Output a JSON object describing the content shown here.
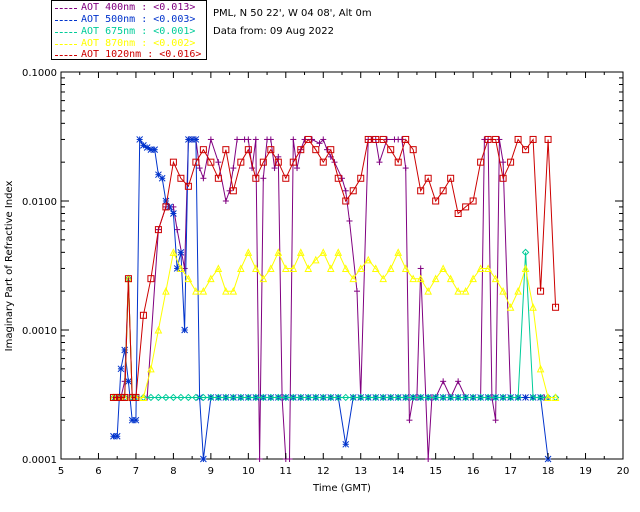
{
  "header": {
    "site": "PML, N 50 22', W 04 08', Alt 0m",
    "date": "Data from: 09 Aug 2022"
  },
  "legend": [
    {
      "label": "AOT  400nm : <0.013>",
      "color": "#800080"
    },
    {
      "label": "AOT  500nm : <0.003>",
      "color": "#0033cc"
    },
    {
      "label": "AOT  675nm : <0.001>",
      "color": "#00cc99"
    },
    {
      "label": "AOT  870nm : <0.002>",
      "color": "#ffff00"
    },
    {
      "label": "AOT 1020nm : <0.016>",
      "color": "#cc0000"
    }
  ],
  "chart_data": {
    "type": "line",
    "title": "",
    "xlabel": "Time (GMT)",
    "ylabel": "Imaginary Part of Refractive Index",
    "xlim": [
      5,
      20
    ],
    "ylim": [
      0.0001,
      0.1
    ],
    "yscale": "log",
    "xticks": [
      "5",
      "6",
      "7",
      "8",
      "9",
      "10",
      "11",
      "12",
      "13",
      "14",
      "15",
      "16",
      "17",
      "18",
      "19",
      "20"
    ],
    "yticks": [
      "0.0001",
      "0.0010",
      "0.0100",
      "0.1000"
    ],
    "series": [
      {
        "name": "AOT 400nm",
        "color": "#800080",
        "marker": "plus",
        "x": [
          6.4,
          6.5,
          6.6,
          6.7,
          6.8,
          6.9,
          7.0,
          7.3,
          7.6,
          7.8,
          8.0,
          8.1,
          8.3,
          8.4,
          8.5,
          8.6,
          8.7,
          8.8,
          9.0,
          9.2,
          9.4,
          9.5,
          9.6,
          9.7,
          9.9,
          10.0,
          10.1,
          10.2,
          10.3,
          10.4,
          10.5,
          10.6,
          10.7,
          10.8,
          10.9,
          11.0,
          11.1,
          11.2,
          11.3,
          11.4,
          11.5,
          11.7,
          11.9,
          12.0,
          12.1,
          12.2,
          12.3,
          12.5,
          12.6,
          12.7,
          12.9,
          13.0,
          13.2,
          13.3,
          13.4,
          13.5,
          13.7,
          13.9,
          14.0,
          14.1,
          14.2,
          14.3,
          14.4,
          14.5,
          14.6,
          14.8,
          14.9,
          15.0,
          15.2,
          15.4,
          15.6,
          15.8,
          16.0,
          16.2,
          16.3,
          16.4,
          16.5,
          16.6,
          16.7,
          16.8,
          17.0,
          17.2,
          17.4,
          17.6,
          17.8,
          17.9,
          18.0
        ],
        "y": [
          0.0003,
          0.0003,
          0.0003,
          0.0004,
          0.0025,
          0.0003,
          0.0003,
          0.0003,
          0.006,
          0.009,
          0.009,
          0.006,
          0.003,
          0.03,
          0.03,
          0.03,
          0.018,
          0.015,
          0.03,
          0.02,
          0.01,
          0.012,
          0.018,
          0.03,
          0.03,
          0.03,
          0.018,
          0.03,
          0.0001,
          0.015,
          0.03,
          0.03,
          0.018,
          0.022,
          0.0003,
          0.0001,
          0.0001,
          0.03,
          0.018,
          0.025,
          0.03,
          0.03,
          0.028,
          0.03,
          0.025,
          0.022,
          0.02,
          0.015,
          0.012,
          0.007,
          0.002,
          0.0003,
          0.03,
          0.03,
          0.03,
          0.02,
          0.03,
          0.03,
          0.03,
          0.03,
          0.018,
          0.0002,
          0.0003,
          0.0003,
          0.003,
          0.0001,
          0.0003,
          0.0003,
          0.0004,
          0.0003,
          0.0004,
          0.0003,
          0.0003,
          0.0003,
          0.03,
          0.03,
          0.0003,
          0.0002,
          0.03,
          0.02,
          0.0003,
          0.0003,
          0.0003,
          0.0003,
          0.0003,
          0.0003,
          0.0003
        ]
      },
      {
        "name": "AOT 500nm",
        "color": "#0033cc",
        "marker": "asterisk",
        "x": [
          6.4,
          6.5,
          6.6,
          6.7,
          6.8,
          6.9,
          7.0,
          7.1,
          7.2,
          7.3,
          7.4,
          7.5,
          7.6,
          7.7,
          7.8,
          7.9,
          8.0,
          8.1,
          8.2,
          8.3,
          8.4,
          8.5,
          8.6,
          8.7,
          8.8,
          9.0,
          9.2,
          9.4,
          9.6,
          9.8,
          10.0,
          10.2,
          10.4,
          10.6,
          10.8,
          11.0,
          11.2,
          11.4,
          11.6,
          11.8,
          12.0,
          12.2,
          12.4,
          12.6,
          12.8,
          13.0,
          13.2,
          13.4,
          13.6,
          13.8,
          14.0,
          14.2,
          14.4,
          14.6,
          14.8,
          15.0,
          15.2,
          15.4,
          15.6,
          15.8,
          16.0,
          16.2,
          16.4,
          16.6,
          16.8,
          17.0,
          17.2,
          17.4,
          17.6,
          17.8,
          18.0
        ],
        "y": [
          0.00015,
          0.00015,
          0.0005,
          0.0007,
          0.0004,
          0.0002,
          0.0002,
          0.03,
          0.027,
          0.026,
          0.025,
          0.025,
          0.016,
          0.015,
          0.01,
          0.009,
          0.008,
          0.003,
          0.004,
          0.001,
          0.03,
          0.03,
          0.03,
          0.0003,
          0.0001,
          0.0003,
          0.0003,
          0.0003,
          0.0003,
          0.0003,
          0.0003,
          0.0003,
          0.0003,
          0.0003,
          0.0003,
          0.0003,
          0.0003,
          0.0003,
          0.0003,
          0.0003,
          0.0003,
          0.0003,
          0.0003,
          0.00013,
          0.0003,
          0.0003,
          0.0003,
          0.0003,
          0.0003,
          0.0003,
          0.0003,
          0.0003,
          0.0003,
          0.0003,
          0.0003,
          0.0003,
          0.0003,
          0.0003,
          0.0003,
          0.0003,
          0.0003,
          0.0003,
          0.0003,
          0.0003,
          0.0003,
          0.0003,
          0.0003,
          0.0003,
          0.0003,
          0.0003,
          0.0001
        ]
      },
      {
        "name": "AOT 675nm",
        "color": "#00cc99",
        "marker": "diamond",
        "x": [
          6.4,
          6.5,
          6.6,
          6.7,
          6.8,
          6.9,
          7.0,
          7.2,
          7.4,
          7.6,
          7.8,
          8.0,
          8.2,
          8.4,
          8.6,
          8.8,
          9.0,
          9.2,
          9.4,
          9.6,
          9.8,
          10.0,
          10.2,
          10.4,
          10.6,
          10.8,
          11.0,
          11.2,
          11.4,
          11.6,
          11.8,
          12.0,
          12.2,
          12.4,
          12.6,
          12.8,
          13.0,
          13.2,
          13.4,
          13.6,
          13.8,
          14.0,
          14.2,
          14.4,
          14.6,
          14.8,
          15.0,
          15.2,
          15.4,
          15.6,
          15.8,
          16.0,
          16.2,
          16.4,
          16.6,
          16.8,
          17.0,
          17.2,
          17.4,
          17.6,
          17.8,
          18.0,
          18.2
        ],
        "y": [
          0.0003,
          0.0003,
          0.0003,
          0.0003,
          0.0025,
          0.0003,
          0.0003,
          0.0003,
          0.0003,
          0.0003,
          0.0003,
          0.0003,
          0.0003,
          0.0003,
          0.0003,
          0.0003,
          0.0003,
          0.0003,
          0.0003,
          0.0003,
          0.0003,
          0.0003,
          0.0003,
          0.0003,
          0.0003,
          0.0003,
          0.0003,
          0.0003,
          0.0003,
          0.0003,
          0.0003,
          0.0003,
          0.0003,
          0.0003,
          0.0003,
          0.0003,
          0.0003,
          0.0003,
          0.0003,
          0.0003,
          0.0003,
          0.0003,
          0.0003,
          0.0003,
          0.0003,
          0.0003,
          0.0003,
          0.0003,
          0.0003,
          0.0003,
          0.0003,
          0.0003,
          0.0003,
          0.0003,
          0.0003,
          0.0003,
          0.0003,
          0.0003,
          0.004,
          0.0003,
          0.0003,
          0.0003,
          0.0003
        ]
      },
      {
        "name": "AOT 870nm",
        "color": "#ffff00",
        "marker": "triangle",
        "x": [
          6.4,
          6.5,
          6.6,
          6.7,
          6.8,
          6.9,
          7.0,
          7.2,
          7.4,
          7.6,
          7.8,
          8.0,
          8.2,
          8.4,
          8.6,
          8.8,
          9.0,
          9.2,
          9.4,
          9.6,
          9.8,
          10.0,
          10.2,
          10.4,
          10.6,
          10.8,
          11.0,
          11.2,
          11.4,
          11.6,
          11.8,
          12.0,
          12.2,
          12.4,
          12.6,
          12.8,
          13.0,
          13.2,
          13.4,
          13.6,
          13.8,
          14.0,
          14.2,
          14.4,
          14.6,
          14.8,
          15.0,
          15.2,
          15.4,
          15.6,
          15.8,
          16.0,
          16.2,
          16.4,
          16.6,
          16.8,
          17.0,
          17.2,
          17.4,
          17.6,
          17.8,
          18.0,
          18.2
        ],
        "y": [
          0.0003,
          0.0003,
          0.0003,
          0.0003,
          0.0025,
          0.0003,
          0.0003,
          0.0003,
          0.0005,
          0.001,
          0.002,
          0.004,
          0.003,
          0.0025,
          0.002,
          0.002,
          0.0025,
          0.003,
          0.002,
          0.002,
          0.003,
          0.004,
          0.003,
          0.0025,
          0.003,
          0.004,
          0.003,
          0.003,
          0.004,
          0.003,
          0.0035,
          0.004,
          0.003,
          0.004,
          0.003,
          0.0025,
          0.003,
          0.0035,
          0.003,
          0.0025,
          0.003,
          0.004,
          0.003,
          0.0025,
          0.0025,
          0.002,
          0.0025,
          0.003,
          0.0025,
          0.002,
          0.002,
          0.0025,
          0.003,
          0.003,
          0.0025,
          0.002,
          0.0015,
          0.002,
          0.003,
          0.0015,
          0.0005,
          0.0003,
          0.0003
        ]
      },
      {
        "name": "AOT 1020nm",
        "color": "#cc0000",
        "marker": "square",
        "x": [
          6.4,
          6.5,
          6.6,
          6.7,
          6.8,
          6.9,
          7.0,
          7.2,
          7.4,
          7.6,
          7.8,
          8.0,
          8.2,
          8.4,
          8.6,
          8.8,
          9.0,
          9.2,
          9.4,
          9.6,
          9.8,
          10.0,
          10.2,
          10.4,
          10.6,
          10.8,
          11.0,
          11.2,
          11.4,
          11.6,
          11.8,
          12.0,
          12.2,
          12.4,
          12.6,
          12.8,
          13.0,
          13.2,
          13.4,
          13.6,
          13.8,
          14.0,
          14.2,
          14.4,
          14.6,
          14.8,
          15.0,
          15.2,
          15.4,
          15.6,
          15.8,
          16.0,
          16.2,
          16.4,
          16.6,
          16.8,
          17.0,
          17.2,
          17.4,
          17.6,
          17.8,
          18.0,
          18.2
        ],
        "y": [
          0.0003,
          0.0003,
          0.0003,
          0.0003,
          0.0025,
          0.0003,
          0.0003,
          0.0013,
          0.0025,
          0.006,
          0.009,
          0.02,
          0.015,
          0.013,
          0.02,
          0.025,
          0.02,
          0.015,
          0.025,
          0.012,
          0.02,
          0.025,
          0.015,
          0.02,
          0.025,
          0.02,
          0.015,
          0.02,
          0.025,
          0.03,
          0.025,
          0.02,
          0.025,
          0.015,
          0.01,
          0.012,
          0.015,
          0.03,
          0.03,
          0.03,
          0.025,
          0.02,
          0.03,
          0.025,
          0.012,
          0.015,
          0.01,
          0.012,
          0.015,
          0.008,
          0.009,
          0.01,
          0.02,
          0.03,
          0.03,
          0.015,
          0.02,
          0.03,
          0.025,
          0.03,
          0.002,
          0.03,
          0.0015
        ]
      }
    ]
  }
}
